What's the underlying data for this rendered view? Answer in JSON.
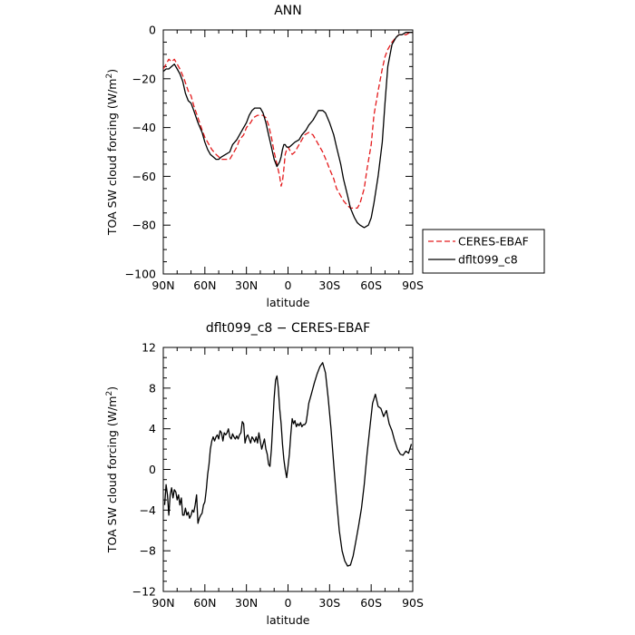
{
  "chart_data": [
    {
      "type": "line",
      "title": "ANN",
      "xlabel": "latitude",
      "ylabel": "TOA SW cloud forcing (W/m²)",
      "ylabel_parts": [
        "TOA SW cloud forcing (W/m",
        "2",
        ")"
      ],
      "x_note": "x = latitude in degrees, positive = north (90N) to negative = south (90S); axis runs 90N -> 90S",
      "xlim": [
        90,
        -90
      ],
      "ylim": [
        -100,
        0
      ],
      "xticks": [
        90,
        60,
        30,
        0,
        -30,
        -60,
        -90
      ],
      "xtick_labels": [
        "90N",
        "60N",
        "30N",
        "0",
        "30S",
        "60S",
        "90S"
      ],
      "yticks": [
        0,
        -20,
        -40,
        -60,
        -80,
        -100
      ],
      "ytick_labels": [
        "0",
        "−20",
        "−40",
        "−60",
        "−80",
        "−100"
      ],
      "legend": {
        "placement": "outside-right"
      },
      "series": [
        {
          "name": "CERES-EBAF",
          "color": "#e41a1c",
          "style": "dashed",
          "x": [
            90,
            88,
            86,
            84,
            82,
            80,
            78,
            75,
            72,
            70,
            68,
            65,
            62,
            60,
            57,
            55,
            52,
            50,
            48,
            45,
            42,
            40,
            37,
            35,
            32,
            30,
            27,
            25,
            22,
            20,
            18,
            16,
            14,
            12,
            10,
            8,
            6,
            5,
            4,
            3,
            2,
            1,
            0,
            -1,
            -2,
            -3,
            -5,
            -7,
            -8,
            -10,
            -12,
            -15,
            -18,
            -20,
            -22,
            -25,
            -28,
            -30,
            -33,
            -35,
            -38,
            -40,
            -43,
            -45,
            -48,
            -50,
            -52,
            -55,
            -57,
            -60,
            -62,
            -65,
            -68,
            -70,
            -72,
            -75,
            -78,
            -80,
            -82,
            -85,
            -88,
            -90
          ],
          "y": [
            -16,
            -14,
            -12,
            -13,
            -12,
            -14,
            -16,
            -20,
            -25,
            -27,
            -31,
            -36,
            -41,
            -44,
            -47,
            -49,
            -51,
            -52,
            -53,
            -53,
            -53,
            -51,
            -48,
            -45,
            -43,
            -40,
            -38,
            -36,
            -35,
            -35,
            -35,
            -36,
            -39,
            -44,
            -50,
            -55,
            -60,
            -64,
            -62,
            -57,
            -51,
            -49,
            -48,
            -49,
            -50,
            -51,
            -50,
            -48,
            -47,
            -45,
            -43,
            -42,
            -43,
            -45,
            -47,
            -50,
            -54,
            -57,
            -61,
            -65,
            -68,
            -70,
            -72,
            -73,
            -73,
            -73,
            -71,
            -65,
            -57,
            -47,
            -35,
            -25,
            -16,
            -11,
            -8,
            -5,
            -3,
            -2,
            -2,
            -2,
            -1,
            -1
          ]
        },
        {
          "name": "dflt099_c8",
          "color": "#000000",
          "style": "solid",
          "x": [
            90,
            88,
            86,
            84,
            82,
            80,
            78,
            76,
            74,
            72,
            70,
            68,
            65,
            62,
            60,
            58,
            56,
            54,
            52,
            50,
            48,
            45,
            42,
            40,
            37,
            35,
            32,
            30,
            28,
            26,
            24,
            22,
            20,
            18,
            16,
            14,
            12,
            10,
            8,
            6,
            5,
            4,
            3,
            2,
            1,
            0,
            -1,
            -3,
            -5,
            -8,
            -10,
            -13,
            -15,
            -18,
            -20,
            -22,
            -25,
            -27,
            -30,
            -33,
            -35,
            -38,
            -40,
            -43,
            -45,
            -48,
            -50,
            -52,
            -55,
            -58,
            -60,
            -62,
            -65,
            -68,
            -70,
            -72,
            -75,
            -78,
            -80,
            -82,
            -85,
            -88,
            -90
          ],
          "y": [
            -17,
            -16,
            -16,
            -15,
            -14,
            -16,
            -18,
            -21,
            -26,
            -29,
            -30,
            -33,
            -38,
            -42,
            -46,
            -49,
            -51,
            -52,
            -53,
            -53,
            -52,
            -51,
            -50,
            -47,
            -45,
            -43,
            -40,
            -38,
            -35,
            -33,
            -32,
            -32,
            -32,
            -34,
            -38,
            -43,
            -48,
            -53,
            -56,
            -54,
            -52,
            -49,
            -47,
            -47,
            -48,
            -48,
            -48,
            -47,
            -46,
            -45,
            -43,
            -41,
            -39,
            -37,
            -35,
            -33,
            -33,
            -34,
            -38,
            -43,
            -48,
            -55,
            -61,
            -68,
            -73,
            -77,
            -79,
            -80,
            -81,
            -80,
            -77,
            -71,
            -60,
            -46,
            -30,
            -15,
            -6,
            -3,
            -2,
            -2,
            -1,
            -1,
            -1
          ]
        }
      ]
    },
    {
      "type": "line",
      "title": "dflt099_c8 − CERES-EBAF",
      "xlabel": "latitude",
      "ylabel": "TOA SW cloud forcing (W/m²)",
      "ylabel_parts": [
        "TOA SW cloud forcing (W/m",
        "2",
        ")"
      ],
      "x_note": "x = latitude in degrees, positive = north (90N) to negative = south (90S); axis runs 90N -> 90S",
      "xlim": [
        90,
        -90
      ],
      "ylim": [
        -12,
        12
      ],
      "xticks": [
        90,
        60,
        30,
        0,
        -30,
        -60,
        -90
      ],
      "xtick_labels": [
        "90N",
        "60N",
        "30N",
        "0",
        "30S",
        "60S",
        "90S"
      ],
      "yticks": [
        12,
        8,
        4,
        0,
        -4,
        -8,
        -12
      ],
      "ytick_labels": [
        "12",
        "8",
        "4",
        "0",
        "−4",
        "−8",
        "−12"
      ],
      "series": [
        {
          "color": "#000000",
          "style": "solid",
          "x": [
            89,
            88,
            87,
            86,
            85,
            84,
            83,
            82,
            81,
            80,
            79,
            78,
            77,
            76,
            75,
            74,
            73,
            72,
            71,
            70,
            69,
            68,
            67,
            66,
            65,
            64,
            63,
            62,
            61,
            60,
            59,
            58,
            57,
            56,
            55,
            54,
            53,
            52,
            51,
            50,
            49,
            48,
            47,
            46,
            45,
            44,
            43,
            42,
            41,
            40,
            39,
            38,
            37,
            36,
            35,
            34,
            33,
            32,
            31,
            30,
            29,
            28,
            27,
            26,
            25,
            24,
            23,
            22,
            21,
            20,
            19,
            18,
            17,
            16,
            15,
            14,
            13,
            12,
            11,
            10,
            9,
            8,
            7,
            6,
            5,
            4,
            3,
            2,
            1,
            0,
            -1,
            -2,
            -3,
            -4,
            -5,
            -6,
            -7,
            -8,
            -9,
            -10,
            -11,
            -12,
            -13,
            -14,
            -15,
            -17,
            -19,
            -21,
            -23,
            -25,
            -27,
            -29,
            -31,
            -33,
            -35,
            -37,
            -39,
            -41,
            -43,
            -45,
            -47,
            -49,
            -51,
            -53,
            -55,
            -57,
            -59,
            -61,
            -63,
            -65,
            -67,
            -69,
            -71,
            -73,
            -75,
            -77,
            -79,
            -81,
            -83,
            -85,
            -87,
            -89
          ],
          "y": [
            -3.5,
            -1.5,
            -2.5,
            -4.5,
            -2.5,
            -1.8,
            -2.8,
            -2.0,
            -2.2,
            -3.0,
            -2.5,
            -3.5,
            -2.8,
            -4.5,
            -4.5,
            -3.8,
            -4.5,
            -4.2,
            -4.8,
            -4.5,
            -4.0,
            -4.2,
            -3.5,
            -2.5,
            -5.3,
            -4.8,
            -4.5,
            -4.3,
            -3.5,
            -3.2,
            -2.0,
            -0.5,
            0.5,
            2.0,
            2.8,
            3.2,
            2.8,
            3.2,
            3.4,
            3.0,
            3.8,
            3.6,
            2.8,
            3.6,
            3.4,
            3.6,
            4.0,
            3.2,
            3.0,
            3.5,
            3.2,
            3.0,
            3.3,
            3.0,
            3.4,
            3.6,
            4.7,
            4.5,
            2.6,
            3.2,
            3.4,
            3.0,
            2.6,
            3.2,
            3.0,
            2.7,
            3.2,
            2.6,
            3.6,
            2.8,
            2.0,
            2.5,
            3.0,
            2.0,
            1.5,
            0.5,
            0.3,
            2.0,
            4.5,
            7.0,
            8.8,
            9.2,
            8.0,
            6.0,
            4.5,
            2.5,
            1.0,
            0.0,
            -0.8,
            0.3,
            1.5,
            3.5,
            5.0,
            4.5,
            4.8,
            4.2,
            4.5,
            4.3,
            4.6,
            4.2,
            4.4,
            4.4,
            4.6,
            5.5,
            6.5,
            7.5,
            8.5,
            9.4,
            10.1,
            10.5,
            9.5,
            7.0,
            4.0,
            0.5,
            -3.0,
            -6.0,
            -8.0,
            -9.0,
            -9.5,
            -9.4,
            -8.5,
            -7.0,
            -5.5,
            -3.8,
            -1.5,
            1.5,
            4.0,
            6.5,
            7.4,
            6.2,
            6.0,
            5.2,
            5.8,
            4.5,
            3.8,
            2.8,
            2.0,
            1.5,
            1.4,
            1.8,
            1.6,
            2.5
          ]
        }
      ]
    }
  ]
}
